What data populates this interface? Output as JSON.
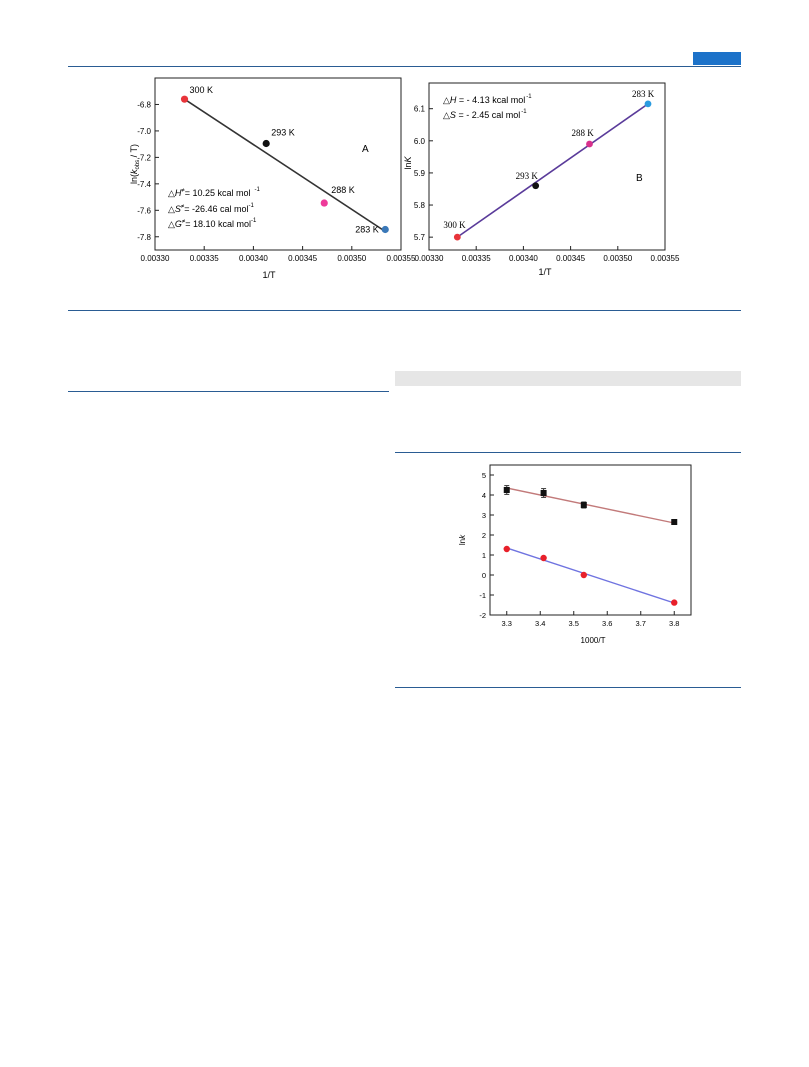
{
  "colors": {
    "rule": "#2a5c93",
    "tab": "#1c72c9",
    "gray_bar": "#e6e6e6"
  },
  "chart_data": [
    {
      "type": "scatter",
      "panel_label": "A",
      "xlabel": "1/T",
      "ylabel": "ln(k_obs / T)",
      "ylabel_main": "ln(",
      "ylabel_k": "k",
      "ylabel_sub": "obs",
      "ylabel_tail": " / T)",
      "xlim": [
        0.0033,
        0.00355
      ],
      "ylim": [
        -7.9,
        -6.6
      ],
      "x_ticks": [
        0.0033,
        0.00335,
        0.0034,
        0.00345,
        0.0035,
        0.00355
      ],
      "x_tick_labels": [
        "0.00330",
        "0.00335",
        "0.00340",
        "0.00345",
        "0.00350",
        "0.00355"
      ],
      "y_ticks": [
        -6.8,
        -7.0,
        -7.2,
        -7.4,
        -7.6,
        -7.8
      ],
      "y_tick_labels": [
        "-6.8",
        "-7.0",
        "-7.2",
        "-7.4",
        "-7.6",
        "-7.8"
      ],
      "points": [
        {
          "x": 0.00333,
          "y": -6.76,
          "label": "300 K",
          "color": "#e8343a"
        },
        {
          "x": 0.003413,
          "y": -7.095,
          "label": "293 K",
          "color": "#111111"
        },
        {
          "x": 0.003472,
          "y": -7.545,
          "label": "288 K",
          "color": "#ee3a9a"
        },
        {
          "x": 0.003534,
          "y": -7.745,
          "label": "283 K",
          "color": "#3a78b8"
        }
      ],
      "fit": {
        "x": [
          0.00333,
          0.003534
        ],
        "y": [
          -6.76,
          -7.76
        ],
        "color": "#333333"
      },
      "annotations": [
        {
          "symbol": "△",
          "var": "H",
          "sup": "≠",
          "value": "= 10.25 kcal mol",
          "unit_sup": "-1"
        },
        {
          "symbol": "△",
          "var": "S",
          "sup": "≠",
          "value": "= -26.46  cal mol",
          "unit_sup": "-1"
        },
        {
          "symbol": "△",
          "var": "G",
          "sup": "≠",
          "value": "= 18.10 kcal mol",
          "unit_sup": "-1"
        }
      ]
    },
    {
      "type": "scatter",
      "panel_label": "B",
      "xlabel": "1/T",
      "ylabel": "lnK",
      "ylabel_main": "ln",
      "ylabel_k": "K",
      "xlim": [
        0.0033,
        0.00355
      ],
      "ylim": [
        5.66,
        6.18
      ],
      "x_ticks": [
        0.0033,
        0.00335,
        0.0034,
        0.00345,
        0.0035,
        0.00355
      ],
      "x_tick_labels": [
        "0.00330",
        "0.00335",
        "0.00340",
        "0.00345",
        "0.00350",
        "0.00355"
      ],
      "y_ticks": [
        5.7,
        5.8,
        5.9,
        6.0,
        6.1
      ],
      "y_tick_labels": [
        "5.7",
        "5.8",
        "5.9",
        "6.0",
        "6.1"
      ],
      "points": [
        {
          "x": 0.00333,
          "y": 5.7,
          "label": "300 K",
          "color": "#e8343a"
        },
        {
          "x": 0.003413,
          "y": 5.86,
          "label": "293 K",
          "color": "#111111"
        },
        {
          "x": 0.00347,
          "y": 5.99,
          "label": "288 K",
          "color": "#d8308c"
        },
        {
          "x": 0.003532,
          "y": 6.115,
          "label": "283 K",
          "color": "#2a9be0"
        }
      ],
      "fit": {
        "x": [
          0.00333,
          0.003532
        ],
        "y": [
          5.7,
          6.115
        ],
        "color": "#5a3b9a"
      },
      "annotations": [
        {
          "symbol": "△",
          "var": "H",
          "value": " = - 4.13 kcal mol",
          "unit_sup": "-1"
        },
        {
          "symbol": "△",
          "var": "S",
          "value": " = - 2.45  cal mol",
          "unit_sup": "-1"
        }
      ]
    },
    {
      "type": "scatter",
      "xlabel": "1000/T",
      "ylabel": "lnk",
      "ylabel_main": "ln",
      "ylabel_k": "k",
      "xlim": [
        3.25,
        3.85
      ],
      "ylim": [
        -2,
        5.5
      ],
      "x_ticks": [
        3.3,
        3.4,
        3.5,
        3.6,
        3.7,
        3.8
      ],
      "x_tick_labels": [
        "3.3",
        "3.4",
        "3.5",
        "3.6",
        "3.7",
        "3.8"
      ],
      "y_ticks": [
        -2,
        -1,
        0,
        1,
        2,
        3,
        4,
        5
      ],
      "y_tick_labels": [
        "-2",
        "-1",
        "0",
        "1",
        "2",
        "3",
        "4",
        "5"
      ],
      "series": [
        {
          "marker": "square",
          "color": "#111111",
          "x": [
            3.3,
            3.41,
            3.53,
            3.8
          ],
          "y": [
            4.25,
            4.1,
            3.5,
            2.65
          ],
          "err": [
            0.22,
            0.22,
            0.15,
            0.08
          ],
          "fit": {
            "x": [
              3.3,
              3.8
            ],
            "y": [
              4.35,
              2.6
            ],
            "color": "#c27a7a"
          }
        },
        {
          "marker": "circle",
          "color": "#e8202a",
          "x": [
            3.3,
            3.41,
            3.53,
            3.8
          ],
          "y": [
            1.3,
            0.85,
            0.0,
            -1.38
          ],
          "fit": {
            "x": [
              3.3,
              3.8
            ],
            "y": [
              1.35,
              -1.4
            ],
            "color": "#6f73e0"
          }
        }
      ]
    }
  ]
}
